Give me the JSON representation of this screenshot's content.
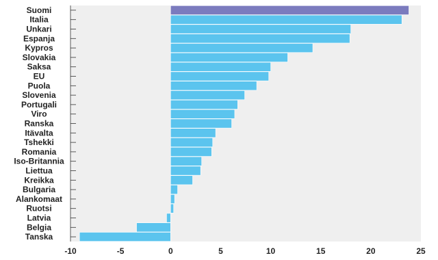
{
  "chart_data": {
    "type": "bar",
    "orientation": "horizontal",
    "categories": [
      "Suomi",
      "Italia",
      "Unkari",
      "Espanja",
      "Kypros",
      "Slovakia",
      "Saksa",
      "EU",
      "Puola",
      "Slovenia",
      "Portugali",
      "Viro",
      "Ranska",
      "Itävalta",
      "Tshekki",
      "Romania",
      "Iso-Britannia",
      "Liettua",
      "Kreikka",
      "Bulgaria",
      "Alankomaat",
      "Ruotsi",
      "Latvia",
      "Belgia",
      "Tanska"
    ],
    "values": [
      23.8,
      23.1,
      18.0,
      17.9,
      14.2,
      11.7,
      10.0,
      9.8,
      8.6,
      7.4,
      6.7,
      6.4,
      6.1,
      4.5,
      4.2,
      4.1,
      3.1,
      3.0,
      2.2,
      0.7,
      0.4,
      0.3,
      -0.4,
      -3.4,
      -9.1
    ],
    "highlight": "Suomi",
    "xlim": [
      -10,
      25
    ],
    "xticks": [
      "-10",
      "-5",
      "0",
      "5",
      "10",
      "15",
      "20",
      "25"
    ],
    "title": "",
    "xlabel": "",
    "ylabel": "",
    "grid": false,
    "colors": {
      "bar": "#5bc4ee",
      "highlight": "#7b7bbe",
      "bar_edge": "#ffffff",
      "plot_bg": "#efefef",
      "axis": "#333333"
    }
  }
}
